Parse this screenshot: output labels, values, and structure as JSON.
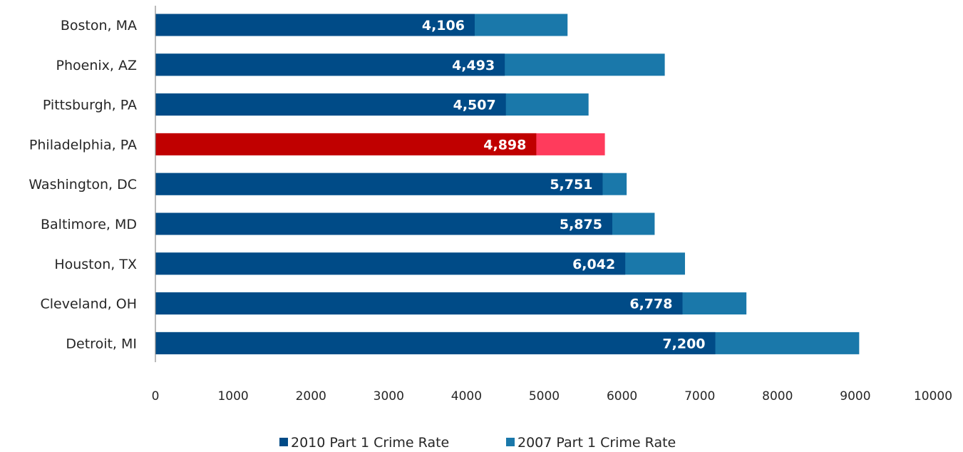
{
  "chart_data": {
    "type": "bar",
    "orientation": "horizontal",
    "stacked": false,
    "categories": [
      "Boston, MA",
      "Phoenix, AZ",
      "Pittsburgh, PA",
      "Philadelphia, PA",
      "Washington, DC",
      "Baltimore, MD",
      "Houston, TX",
      "Cleveland, OH",
      "Detroit, MI"
    ],
    "series": [
      {
        "name": "2010 Part 1 Crime Rate",
        "values": [
          4106,
          4493,
          4507,
          4898,
          5751,
          5875,
          6042,
          6778,
          7200
        ],
        "data_labels": [
          "4,106",
          "4,493",
          "4,507",
          "4,898",
          "5,751",
          "5,875",
          "6,042",
          "6,778",
          "7,200"
        ],
        "color": "#004b87"
      },
      {
        "name": "2007 Part 1 Crime Rate",
        "values": [
          5300,
          6550,
          5570,
          5780,
          6060,
          6420,
          6810,
          7600,
          9050
        ],
        "color": "#1a78aa"
      }
    ],
    "highlight": {
      "category": "Philadelphia, PA",
      "colors": [
        "#c00000",
        "#ff3b5c"
      ]
    },
    "x_ticks": [
      "0",
      "1000",
      "2000",
      "3000",
      "4000",
      "5000",
      "6000",
      "7000",
      "8000",
      "9000",
      "10000"
    ],
    "xlim": [
      0,
      10000
    ],
    "grid": false,
    "legend_position": "bottom",
    "title": "",
    "xlabel": "",
    "ylabel": ""
  }
}
